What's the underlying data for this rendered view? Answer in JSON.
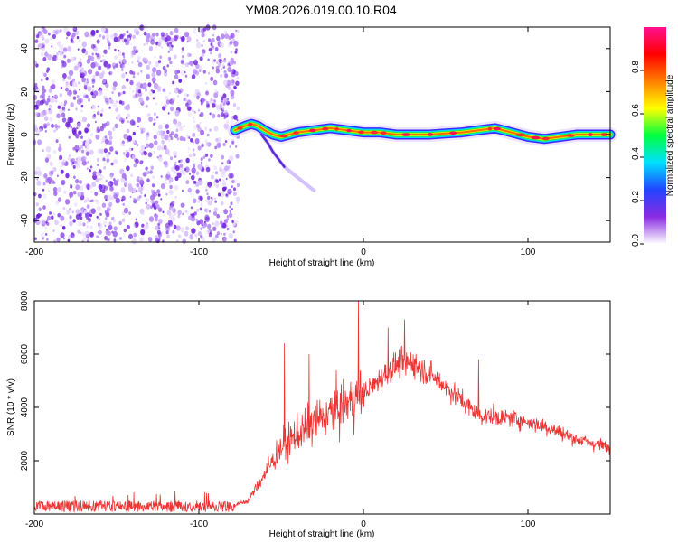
{
  "title": "YM08.2026.019.00.10.R04",
  "chart_data": [
    {
      "type": "heatmap",
      "name": "spectrogram",
      "xlabel": "Height of straight line (km)",
      "ylabel": "Frequency (Hz)",
      "xlim": [
        -200,
        150
      ],
      "ylim": [
        -50,
        50
      ],
      "xticks": [
        -200,
        -100,
        0,
        100
      ],
      "yticks": [
        -40,
        -20,
        0,
        20,
        40
      ],
      "colorbar": {
        "label": "Normalized spectral amplitude",
        "range": [
          0.0,
          1.0
        ],
        "ticks": [
          0.0,
          0.2,
          0.4,
          0.6,
          0.8
        ],
        "tick_labels": [
          "0.0",
          "0.2",
          "0.4",
          "0.6",
          "0.8"
        ],
        "colors": [
          "#ffffff",
          "#8a2be2",
          "#2244ff",
          "#00e0ff",
          "#00ff40",
          "#ffff00",
          "#ff7f00",
          "#ff0000",
          "#ff1090"
        ]
      },
      "noise_region": {
        "x_range": [
          -200,
          -76
        ],
        "y_range": [
          -50,
          50
        ],
        "amplitude": 0.1
      },
      "ridge": [
        {
          "x": -78,
          "y": 2
        },
        {
          "x": -72,
          "y": 4
        },
        {
          "x": -68,
          "y": 5
        },
        {
          "x": -64,
          "y": 4
        },
        {
          "x": -60,
          "y": 2
        },
        {
          "x": -55,
          "y": 0
        },
        {
          "x": -50,
          "y": -1
        },
        {
          "x": -45,
          "y": 0
        },
        {
          "x": -40,
          "y": 1
        },
        {
          "x": -30,
          "y": 2
        },
        {
          "x": -20,
          "y": 3
        },
        {
          "x": -10,
          "y": 2
        },
        {
          "x": 0,
          "y": 1
        },
        {
          "x": 10,
          "y": 1
        },
        {
          "x": 20,
          "y": 0
        },
        {
          "x": 30,
          "y": 0
        },
        {
          "x": 40,
          "y": 0
        },
        {
          "x": 50,
          "y": 0.5
        },
        {
          "x": 60,
          "y": 1
        },
        {
          "x": 70,
          "y": 2
        },
        {
          "x": 80,
          "y": 3
        },
        {
          "x": 90,
          "y": 1
        },
        {
          "x": 100,
          "y": -1
        },
        {
          "x": 110,
          "y": -2
        },
        {
          "x": 120,
          "y": -1
        },
        {
          "x": 130,
          "y": 0
        },
        {
          "x": 140,
          "y": 0
        },
        {
          "x": 150,
          "y": 0
        }
      ],
      "branch": [
        {
          "x": -62,
          "y": 0
        },
        {
          "x": -58,
          "y": -4
        },
        {
          "x": -55,
          "y": -8
        },
        {
          "x": -52,
          "y": -11
        },
        {
          "x": -48,
          "y": -15
        },
        {
          "x": -40,
          "y": -20
        },
        {
          "x": -30,
          "y": -26
        }
      ]
    },
    {
      "type": "line",
      "name": "snr",
      "xlabel": "Height of straight line (km)",
      "ylabel": "SNR (10 * v/v)",
      "xlim": [
        -200,
        150
      ],
      "ylim": [
        0,
        8000
      ],
      "xticks": [
        -200,
        -100,
        0,
        100
      ],
      "yticks": [
        2000,
        4000,
        6000,
        8000
      ],
      "line_color": "#ee3333",
      "envelope": [
        {
          "x": -200,
          "y": 300
        },
        {
          "x": -80,
          "y": 300
        },
        {
          "x": -70,
          "y": 500
        },
        {
          "x": -60,
          "y": 1500
        },
        {
          "x": -50,
          "y": 2500
        },
        {
          "x": -40,
          "y": 3000
        },
        {
          "x": -20,
          "y": 3800
        },
        {
          "x": 0,
          "y": 4500
        },
        {
          "x": 20,
          "y": 5600
        },
        {
          "x": 30,
          "y": 5700
        },
        {
          "x": 50,
          "y": 4800
        },
        {
          "x": 70,
          "y": 3700
        },
        {
          "x": 90,
          "y": 3600
        },
        {
          "x": 110,
          "y": 3300
        },
        {
          "x": 130,
          "y": 2800
        },
        {
          "x": 150,
          "y": 2500
        }
      ],
      "spikes": [
        {
          "x": -3,
          "y": 8000
        },
        {
          "x": 25,
          "y": 7300
        },
        {
          "x": -48,
          "y": 6400
        },
        {
          "x": -33,
          "y": 6000
        },
        {
          "x": 15,
          "y": 7000
        },
        {
          "x": 70,
          "y": 5800
        }
      ]
    }
  ]
}
